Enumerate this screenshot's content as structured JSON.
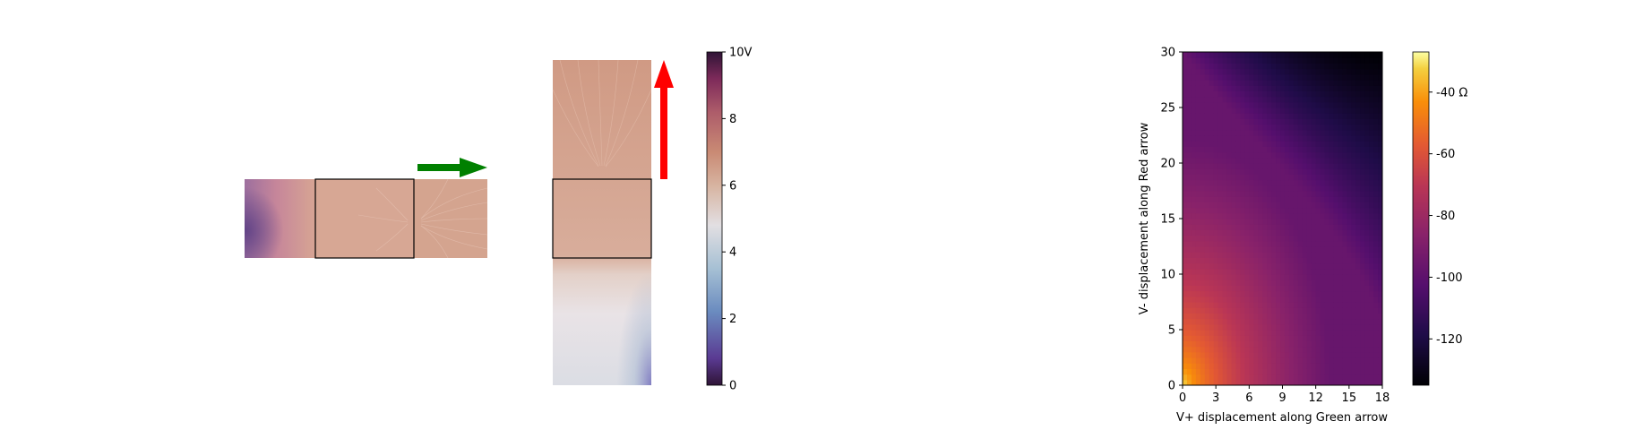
{
  "chart_data": [
    {
      "type": "heatmap",
      "panel": "potential maps",
      "colormap": "twilight",
      "colorbar": {
        "range": [
          0,
          10
        ],
        "ticks": [
          {
            "value": 0,
            "label": "0"
          },
          {
            "value": 2,
            "label": "2"
          },
          {
            "value": 4,
            "label": "4"
          },
          {
            "value": 6,
            "label": "6"
          },
          {
            "value": 8,
            "label": "8"
          },
          {
            "value": 10,
            "label": "10V"
          }
        ]
      },
      "arrows": [
        {
          "color": "#008000",
          "direction": "right"
        },
        {
          "color": "#ff0000",
          "direction": "up"
        }
      ]
    },
    {
      "type": "heatmap",
      "colormap": "inferno",
      "xlabel": "V+ displacement along Green arrow",
      "ylabel": "V- displacement along Red arrow",
      "xlim": [
        0,
        18
      ],
      "ylim": [
        0,
        30
      ],
      "xticks": [
        "0",
        "3",
        "6",
        "9",
        "12",
        "15",
        "18"
      ],
      "yticks": [
        "0",
        "5",
        "10",
        "15",
        "20",
        "25",
        "30"
      ],
      "colorbar": {
        "range": [
          -135,
          -27
        ],
        "ticks": [
          {
            "value": -40,
            "label": "-40 Ω"
          },
          {
            "value": -60,
            "label": "-60"
          },
          {
            "value": -80,
            "label": "-80"
          },
          {
            "value": -100,
            "label": "-100"
          },
          {
            "value": -120,
            "label": "-120"
          }
        ]
      },
      "corner_values": {
        "x0_y0": -27,
        "x18_y0": -88,
        "x0_y30": -97,
        "x18_y30": -135
      }
    }
  ]
}
